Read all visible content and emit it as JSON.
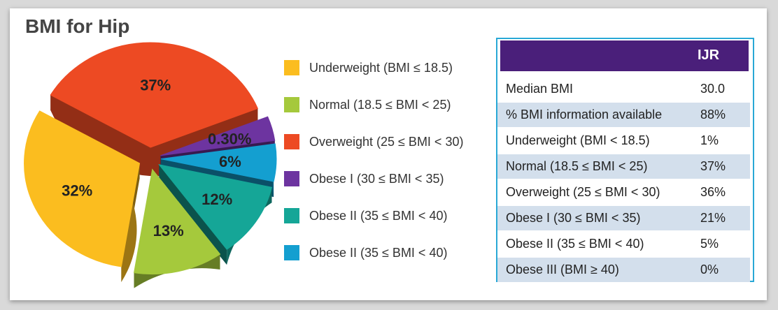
{
  "title": "BMI for Hip",
  "colors": {
    "underweight": "#fbbd1f",
    "normal": "#a5c93c",
    "overweight": "#ed4a23",
    "obese1": "#6d34a0",
    "obese2": "#15a697",
    "obese3": "#149fd0",
    "table_header": "#4a1f7a",
    "table_border": "#29a8d6",
    "row_shade": "#d3dfec"
  },
  "legend": [
    {
      "label": "Underweight (BMI ≤ 18.5)",
      "color": "#fbbd1f"
    },
    {
      "label": "Normal (18.5 ≤ BMI < 25)",
      "color": "#a5c93c"
    },
    {
      "label": "Overweight (25 ≤ BMI < 30)",
      "color": "#ed4a23"
    },
    {
      "label": "Obese I (30 ≤ BMI < 35)",
      "color": "#6d34a0"
    },
    {
      "label": "Obese II (35 ≤ BMI < 40)",
      "color": "#15a697"
    },
    {
      "label": "Obese II (35 ≤ BMI < 40)",
      "color": "#149fd0"
    }
  ],
  "table": {
    "header": "IJR",
    "rows": [
      {
        "label": "Median BMI",
        "value": "30.0"
      },
      {
        "label": "% BMI information available",
        "value": "88%"
      },
      {
        "label": "Underweight (BMI < 18.5)",
        "value": "1%"
      },
      {
        "label": "Normal (18.5 ≤ BMI < 25)",
        "value": "37%"
      },
      {
        "label": "Overweight (25 ≤ BMI < 30)",
        "value": "36%"
      },
      {
        "label": "Obese I (30 ≤ BMI < 35)",
        "value": "21%"
      },
      {
        "label": "Obese II (35 ≤ BMI < 40)",
        "value": "5%"
      },
      {
        "label": "Obese III (BMI ≥ 40)",
        "value": "0%"
      }
    ]
  },
  "chart_data": {
    "type": "pie",
    "title": "BMI for Hip",
    "exploded": true,
    "three_d": true,
    "slices": [
      {
        "label": "37%",
        "value": 37,
        "color": "#ed4a23"
      },
      {
        "label": "0.30%",
        "value": 0.3,
        "color": "#6d34a0"
      },
      {
        "label": "6%",
        "value": 6,
        "color": "#149fd0"
      },
      {
        "label": "12%",
        "value": 12,
        "color": "#15a697"
      },
      {
        "label": "13%",
        "value": 13,
        "color": "#a5c93c"
      },
      {
        "label": "32%",
        "value": 32,
        "color": "#fbbd1f"
      }
    ]
  }
}
